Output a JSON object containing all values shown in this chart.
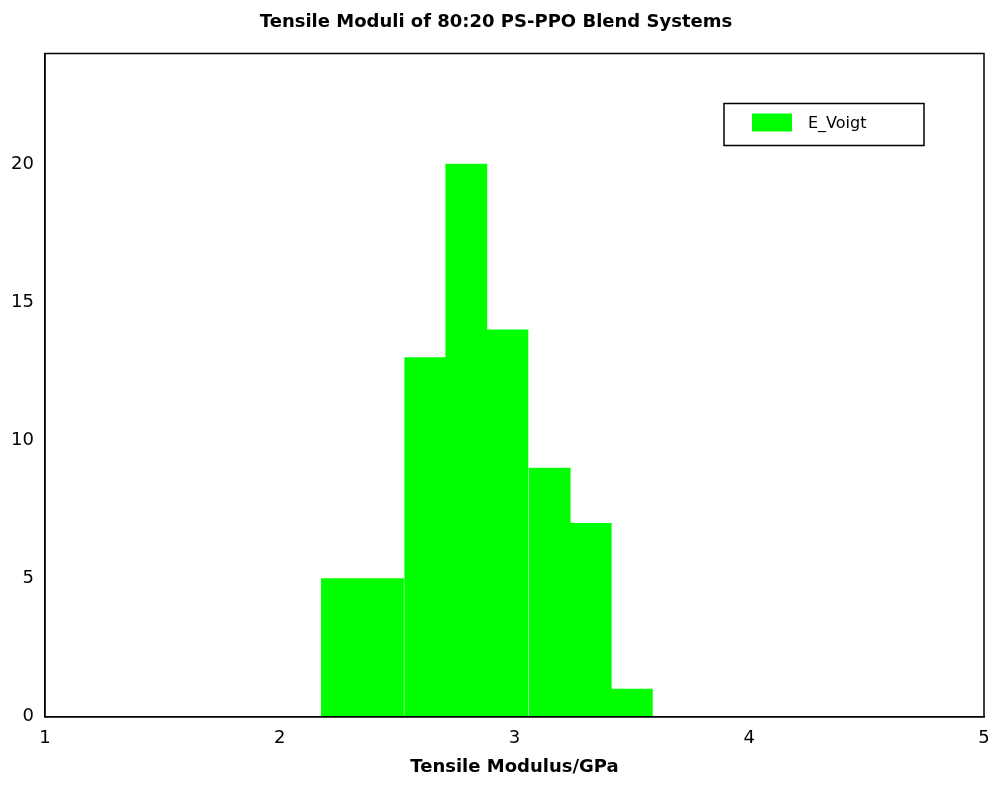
{
  "chart_data": {
    "type": "histogram",
    "title": "Tensile Moduli of 80:20 PS-PPO Blend Systems",
    "xlabel": "Tensile Modulus/GPa",
    "bins": [
      2.0,
      2.18,
      2.35,
      2.53,
      2.71,
      2.88,
      3.06,
      3.24,
      3.41,
      3.59,
      3.77
    ],
    "series": [
      {
        "name": "E_Voigt",
        "color": "#00ff00",
        "values": [
          0,
          5,
          5,
          13,
          20,
          14,
          9,
          7,
          1,
          0
        ]
      }
    ],
    "xlim": [
      1,
      5
    ],
    "xticks": [
      1,
      2,
      3,
      4,
      5
    ],
    "ylim": [
      0,
      24
    ],
    "yticks": [
      0,
      5,
      10,
      15,
      20
    ],
    "grid": false,
    "legend": "top right"
  }
}
